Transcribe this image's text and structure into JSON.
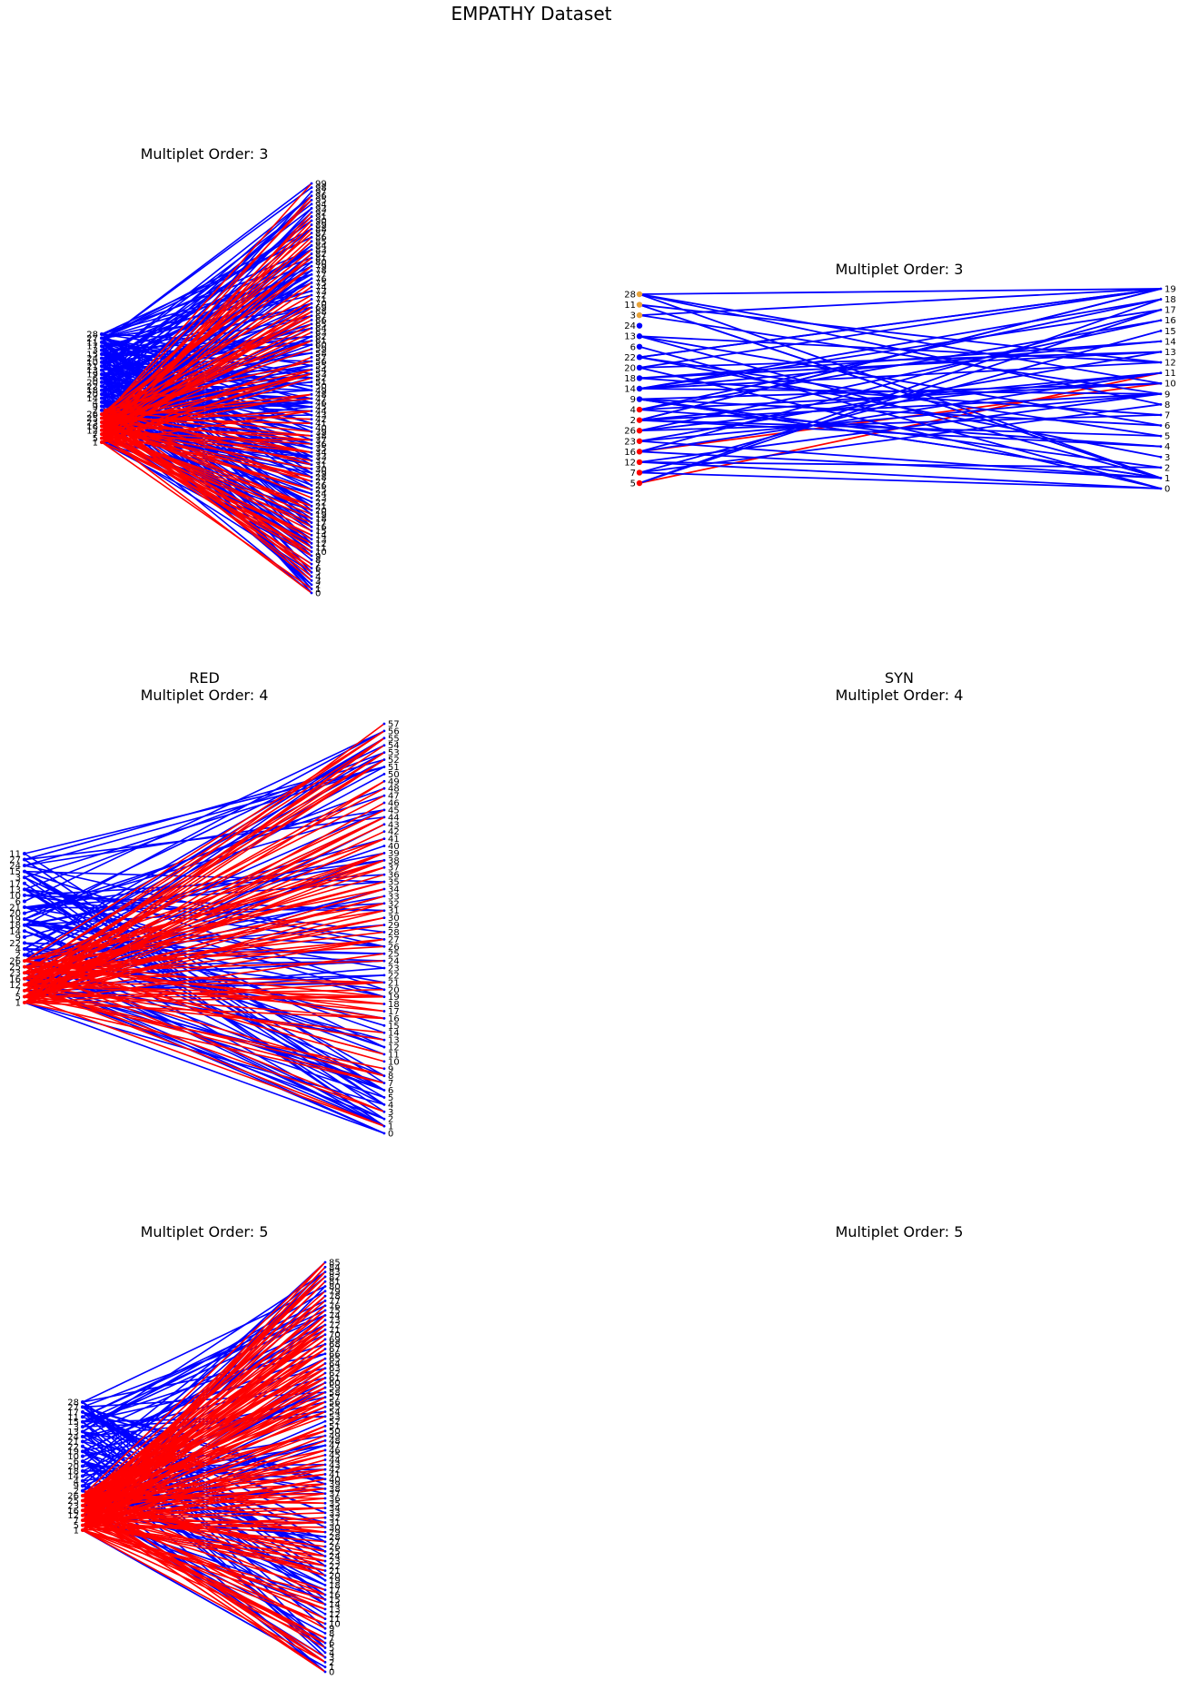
{
  "figure": {
    "title": "EMPATHY Dataset",
    "colors": {
      "redundancy": "#ff0000",
      "synergy": "#0000ff",
      "tier_marker": "#e8a33a",
      "text": "#000000"
    }
  },
  "panels": [
    {
      "title_line1": "",
      "title_line2": "Multiplet Order: 3",
      "left_labels": [
        28,
        27,
        11,
        17,
        3,
        15,
        24,
        10,
        21,
        13,
        19,
        6,
        20,
        22,
        18,
        20,
        14,
        4,
        9,
        2,
        26,
        25,
        23,
        16,
        12,
        7,
        5,
        1
      ],
      "right_count": 100,
      "red_share": 0.35
    },
    {
      "title_line1": "",
      "title_line2": "Multiplet Order: 3",
      "left_labels": [
        28,
        11,
        3,
        24,
        13,
        6,
        22,
        20,
        18,
        14,
        9,
        4,
        2,
        26,
        23,
        16,
        12,
        7,
        5
      ],
      "right_labels": [
        19,
        18,
        17,
        16,
        15,
        14,
        13,
        12,
        11,
        10,
        9,
        8,
        7,
        6,
        5,
        4,
        3,
        2,
        1,
        0
      ],
      "edge_count": 62,
      "red_share": 0.06
    },
    {
      "title_line1": "RED",
      "title_line2": "Multiplet Order: 4",
      "left_labels": [
        11,
        27,
        24,
        15,
        3,
        17,
        13,
        10,
        6,
        21,
        20,
        19,
        18,
        14,
        9,
        22,
        4,
        2,
        26,
        25,
        23,
        16,
        12,
        7,
        5,
        1
      ],
      "right_count": 58,
      "red_share": 0.4
    },
    {
      "title_line1": "SYN",
      "title_line2": "Multiplet Order: 4"
    },
    {
      "title_line1": "",
      "title_line2": "Multiplet Order: 5",
      "left_labels": [
        28,
        27,
        17,
        11,
        15,
        3,
        13,
        24,
        21,
        22,
        19,
        10,
        6,
        20,
        18,
        14,
        4,
        9,
        2,
        26,
        25,
        23,
        16,
        12,
        7,
        5,
        1
      ],
      "right_count": 86,
      "red_share": 0.55
    },
    {
      "title_line1": "",
      "title_line2": "Multiplet Order: 5"
    }
  ]
}
